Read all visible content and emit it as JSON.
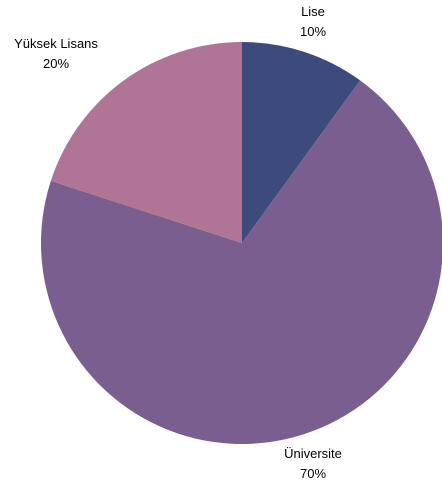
{
  "chart_data": {
    "type": "pie",
    "categories": [
      "Lise",
      "Üniversite",
      "Yüksek Lisans"
    ],
    "values": [
      10,
      70,
      20
    ],
    "value_labels": [
      "10%",
      "70%",
      "20%"
    ],
    "colors": [
      "#3c4a7c",
      "#7b5e90",
      "#b07596"
    ],
    "start_angle_deg": 0,
    "direction": "clockwise",
    "legend": "none"
  }
}
